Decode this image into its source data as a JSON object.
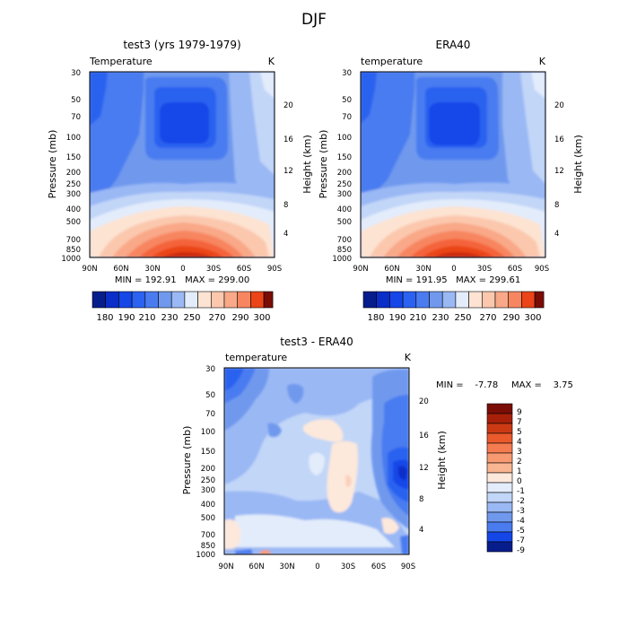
{
  "figure_title": "DJF",
  "colors": {
    "cool": [
      "#081d8c",
      "#0b2dc8",
      "#1446e8",
      "#2c62f0",
      "#4a7cf0",
      "#7099ee",
      "#9ab8f4",
      "#c2d6f8",
      "#e3ecfb"
    ],
    "warm": [
      "#fde3d2",
      "#fbc8ae",
      "#f9a888",
      "#f78660",
      "#f4643a",
      "#ea4418",
      "#cc2c0e",
      "#a8180a",
      "#7a0c06"
    ],
    "diff_cool": [
      "#081d8c",
      "#0b2dc8",
      "#1446e8",
      "#2c62f0",
      "#4a7cf0",
      "#7099ee",
      "#9ab8f4",
      "#c2d6f8",
      "#e3ecfb"
    ],
    "diff_warm": [
      "#fde8dc",
      "#fbd0b8",
      "#f9b592",
      "#f79a72",
      "#f47c50",
      "#ea5a2c",
      "#cc3a14",
      "#a8200a",
      "#7a0e06"
    ]
  },
  "chart_data": [
    {
      "type": "heatmap",
      "title": "test3 (yrs 1979-1979)",
      "variable": "Temperature",
      "unit": "K",
      "ylabel": "Pressure (mb)",
      "ylabel_right": "Height (km)",
      "x_ticks": [
        "90N",
        "60N",
        "30N",
        "0",
        "30S",
        "60S",
        "90S"
      ],
      "y_ticks": [
        "30",
        "50",
        "70",
        "100",
        "150",
        "200",
        "250",
        "300",
        "400",
        "500",
        "700",
        "850",
        "1000"
      ],
      "y2_ticks": [
        "20",
        "16",
        "12",
        "8",
        "4"
      ],
      "stats": "MIN = 192.91   MAX = 299.00",
      "levels": [
        "180",
        "190",
        "200",
        "210",
        "220",
        "230",
        "240",
        "250",
        "260",
        "270",
        "280",
        "290",
        "300"
      ],
      "level_labels": [
        "180",
        "190",
        "210",
        "230",
        "250",
        "270",
        "290",
        "300"
      ]
    },
    {
      "type": "heatmap",
      "title": "ERA40",
      "variable": "temperature",
      "unit": "K",
      "ylabel": "Pressure (mb)",
      "ylabel_right": "Height (km)",
      "x_ticks": [
        "90N",
        "60N",
        "30N",
        "0",
        "30S",
        "60S",
        "90S"
      ],
      "y_ticks": [
        "30",
        "50",
        "70",
        "100",
        "150",
        "200",
        "250",
        "300",
        "400",
        "500",
        "700",
        "850",
        "1000"
      ],
      "y2_ticks": [
        "20",
        "16",
        "12",
        "8",
        "4"
      ],
      "stats": "MIN = 191.95   MAX = 299.61",
      "levels": [
        "180",
        "190",
        "200",
        "210",
        "220",
        "230",
        "240",
        "250",
        "260",
        "270",
        "280",
        "290",
        "300"
      ],
      "level_labels": [
        "180",
        "190",
        "210",
        "230",
        "250",
        "270",
        "290",
        "300"
      ]
    },
    {
      "type": "heatmap",
      "title": "test3 - ERA40",
      "variable": "temperature",
      "unit": "K",
      "ylabel": "Pressure (mb)",
      "ylabel_right": "Height (km)",
      "x_ticks": [
        "90N",
        "60N",
        "30N",
        "0",
        "30S",
        "60S",
        "90S"
      ],
      "y_ticks": [
        "30",
        "50",
        "70",
        "100",
        "150",
        "200",
        "250",
        "300",
        "400",
        "500",
        "700",
        "850",
        "1000"
      ],
      "y2_ticks": [
        "20",
        "16",
        "12",
        "8",
        "4"
      ],
      "stats_min": "MIN =    -7.78",
      "stats_max": "MAX =    3.75",
      "level_labels": [
        "9",
        "7",
        "5",
        "4",
        "3",
        "2",
        "1",
        "0",
        "-1",
        "-2",
        "-3",
        "-4",
        "-5",
        "-7",
        "-9"
      ]
    }
  ]
}
